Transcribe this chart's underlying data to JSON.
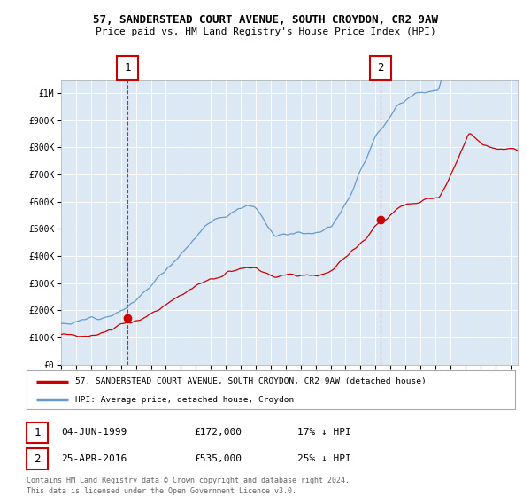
{
  "title_line1": "57, SANDERSTEAD COURT AVENUE, SOUTH CROYDON, CR2 9AW",
  "title_line2": "Price paid vs. HM Land Registry's House Price Index (HPI)",
  "bg_color": "#dce9f5",
  "plot_bg_color": "#dce9f5",
  "line1_color": "#cc0000",
  "line2_color": "#6699cc",
  "sale1_year": 1999.42,
  "sale1_price": 172000,
  "sale2_year": 2016.32,
  "sale2_price": 535000,
  "sale1_date": "04-JUN-1999",
  "sale1_pct": "17% ↓ HPI",
  "sale2_date": "25-APR-2016",
  "sale2_pct": "25% ↓ HPI",
  "ylim_max": 1050000,
  "xlim_start": 1995,
  "xlim_end": 2025.5,
  "legend_label1": "57, SANDERSTEAD COURT AVENUE, SOUTH CROYDON, CR2 9AW (detached house)",
  "legend_label2": "HPI: Average price, detached house, Croydon",
  "footer_line1": "Contains HM Land Registry data © Crown copyright and database right 2024.",
  "footer_line2": "This data is licensed under the Open Government Licence v3.0.",
  "yticks": [
    0,
    100000,
    200000,
    300000,
    400000,
    500000,
    600000,
    700000,
    800000,
    900000,
    1000000
  ],
  "ylabels": [
    "£0",
    "£100K",
    "£200K",
    "£300K",
    "£400K",
    "£500K",
    "£600K",
    "£700K",
    "£800K",
    "£900K",
    "£1M"
  ]
}
